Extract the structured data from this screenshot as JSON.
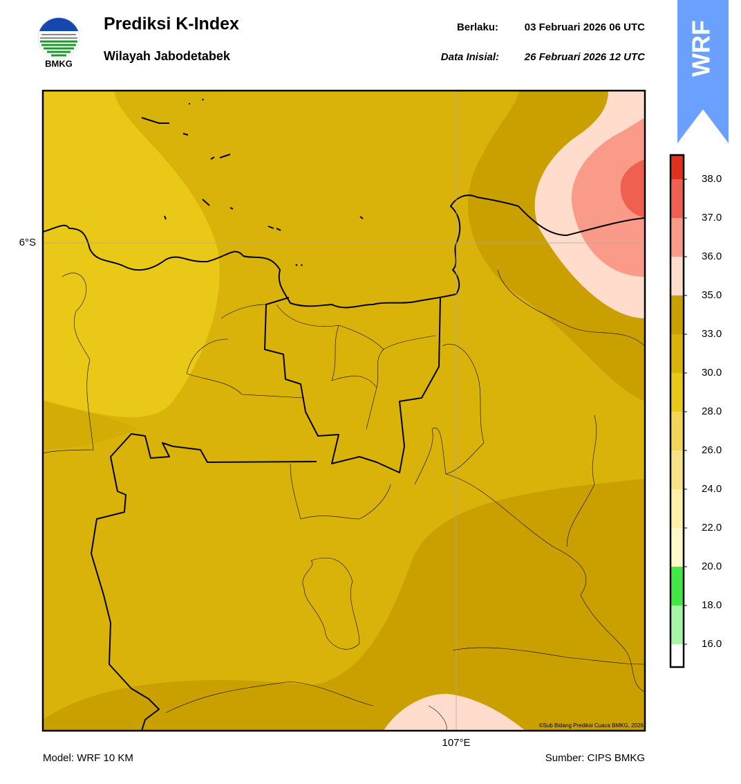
{
  "header": {
    "logo_text": "BMKG",
    "title": "Prediksi K-Index",
    "subtitle": "Wilayah Jabodetabek",
    "valid_label": "Berlaku:",
    "valid_time": "03 Februari 2026 06 UTC",
    "init_label": "Data Inisial:",
    "init_time": "26 Februari 2026 12 UTC",
    "badge": "WRF"
  },
  "map": {
    "lat_label": "6°S",
    "lon_label": "107°E",
    "copyright": "©Sub Bidang Prediksi Cuaca BMKG, 2026"
  },
  "colorbar": {
    "ticks": [
      {
        "value": 16,
        "label": "16.0"
      },
      {
        "value": 18,
        "label": "18.0"
      },
      {
        "value": 20,
        "label": "20.0"
      },
      {
        "value": 22,
        "label": "22.0"
      },
      {
        "value": 24,
        "label": "24.0"
      },
      {
        "value": 26,
        "label": "26.0"
      },
      {
        "value": 28,
        "label": "28.0"
      },
      {
        "value": 30,
        "label": "30.0"
      },
      {
        "value": 33,
        "label": "33.0"
      },
      {
        "value": 35,
        "label": "35.0"
      },
      {
        "value": 36,
        "label": "36.0"
      },
      {
        "value": 37,
        "label": "37.0"
      },
      {
        "value": 38,
        "label": "38.0"
      }
    ],
    "colors": [
      "#ffffff",
      "#a6f5a6",
      "#44e844",
      "#fff8c8",
      "#fff0a8",
      "#f8e288",
      "#f2d658",
      "#eac818",
      "#dab30a",
      "#c9a000",
      "#ffdccc",
      "#fa9a88",
      "#f06050",
      "#e0301e"
    ]
  },
  "footer": {
    "model": "Model: WRF 10 KM",
    "source": "Sumber: CIPS BMKG"
  }
}
